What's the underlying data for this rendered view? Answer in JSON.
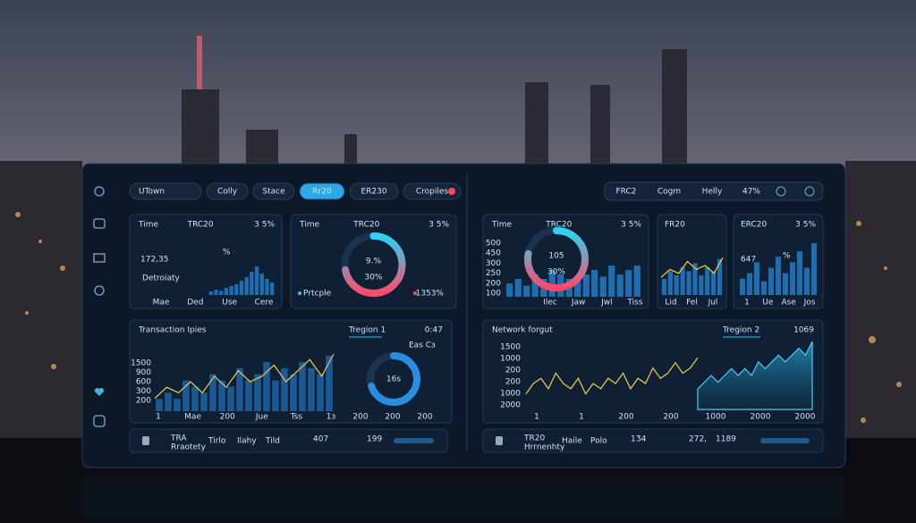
{
  "tabs_left": [
    "UTown",
    "Colly",
    "Stace",
    "Rr20",
    "ER230",
    "Cropiles"
  ],
  "tabs_right": [
    "FRC2",
    "Cogm",
    "Helly",
    "47%"
  ],
  "cards": [
    {
      "label": "Time",
      "title": "TRC20",
      "change": "3 5%",
      "value": "172,35",
      "unit": "%",
      "caption": "Detroiaty",
      "bars": [
        1,
        1.5,
        1.2,
        2,
        2.5,
        3,
        4,
        5,
        6.5,
        8,
        6,
        4.5,
        3.5
      ],
      "x_labels": [
        "Mae",
        "Ded",
        "Use",
        "Cere"
      ]
    },
    {
      "label": "Time",
      "title": "TRC20",
      "change": "3 5%",
      "gauge": "9.%",
      "gauge_sub": "30%",
      "gauge_percent": 72,
      "legend": [
        "Prtcple",
        "1353%"
      ]
    },
    {
      "label": "Time",
      "title": "TRC20",
      "change": "3 5%",
      "gauge": "105",
      "gauge_sub": "30%",
      "gauge_percent": 78,
      "bars": [
        3,
        4,
        2.5,
        5,
        4,
        6,
        5,
        4,
        3.5,
        5,
        6,
        4.5,
        7,
        5,
        6,
        7
      ],
      "x_labels": [
        "Ilec",
        "Jaw",
        "Jwl",
        "Tiss"
      ],
      "y_labels": [
        "500",
        "450",
        "300",
        "250",
        "200",
        "100"
      ]
    },
    {
      "title": "FR20",
      "bars": [
        4,
        6,
        5,
        7,
        6,
        8,
        5,
        7,
        6,
        9
      ],
      "line": [
        4,
        6,
        5,
        8,
        6,
        7,
        5,
        9
      ],
      "x_labels": [
        "Lid",
        "Fel",
        "Jul"
      ]
    },
    {
      "title": "ERC20",
      "change": "3 5%",
      "value": "647",
      "unit": "%",
      "bars": [
        3,
        4,
        6,
        2.5,
        5,
        7,
        4,
        6,
        8,
        5,
        9.5
      ],
      "x_labels": [
        "1",
        "Ue",
        "Ase",
        "Jos"
      ]
    }
  ],
  "lower": [
    {
      "title": "Transaction Ipies",
      "region": "Tregion 1",
      "value": "0:47",
      "y_labels": [
        "1500",
        "900",
        "600",
        "300",
        "200"
      ],
      "x_labels": [
        "1",
        "Mae",
        "200",
        "Jue",
        "Tss",
        "1ɜ"
      ],
      "bars": [
        2,
        3,
        2,
        5,
        4,
        3,
        6,
        5,
        4,
        7,
        5,
        6,
        8,
        5,
        7,
        6,
        8,
        7,
        6,
        9
      ],
      "line": [
        2,
        4,
        3,
        5,
        3,
        6,
        4,
        7,
        5,
        6,
        8,
        5,
        7,
        9,
        6,
        10
      ],
      "donut": "16s",
      "donut_percent": 70,
      "donut_legend": "Eas Cɜ",
      "donut_x_labels": [
        "200",
        "200",
        "200"
      ]
    },
    {
      "title": "Network forgut",
      "region": "Tregion 2",
      "value": "1069",
      "y_labels": [
        "1500",
        "1000",
        "200",
        "200",
        "1000",
        "2000"
      ],
      "x_labels": [
        "1",
        "1",
        "200",
        "200",
        "1000",
        "2000",
        "2000"
      ],
      "line": [
        3,
        5,
        6,
        4,
        7,
        5,
        4,
        6,
        3,
        5,
        4,
        6,
        5,
        7,
        4,
        6,
        5,
        8,
        6,
        7,
        9,
        7,
        8,
        10
      ],
      "area": [
        3,
        4,
        5,
        4,
        5,
        6,
        5,
        6,
        5,
        7,
        6,
        7,
        8,
        7,
        8,
        9,
        8,
        10
      ]
    }
  ],
  "footers": [
    {
      "title": "TRA",
      "subtitle": "Rraotety",
      "items": [
        "Tirlo",
        "Ilahy",
        "Tild"
      ],
      "values": [
        "407",
        "199"
      ]
    },
    {
      "title": "TR20",
      "subtitle": "Hrrnenhty",
      "items": [
        "Haile",
        "Polo"
      ],
      "values": [
        "1Ʒ4",
        "272,",
        "1189"
      ]
    }
  ]
}
